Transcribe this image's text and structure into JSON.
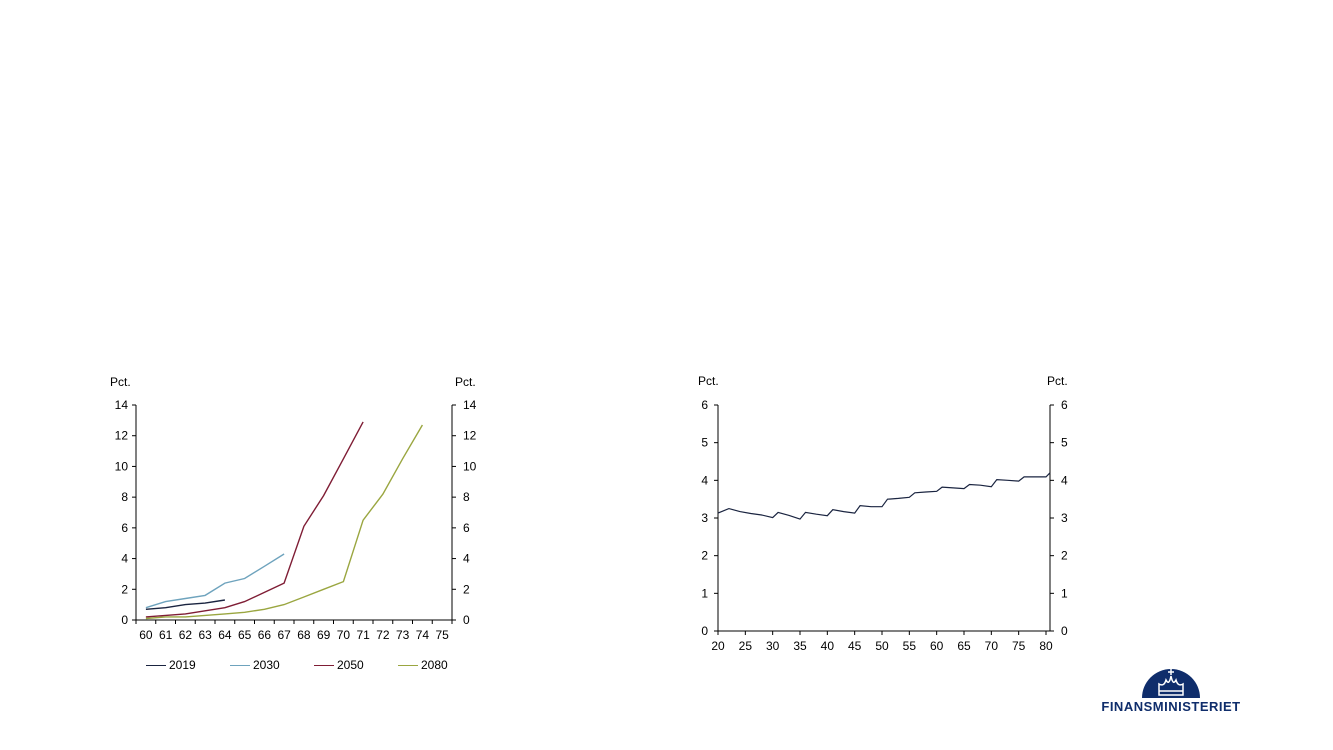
{
  "left_chart": {
    "unit_left": "Pct.",
    "unit_right": "Pct."
  },
  "right_chart": {
    "unit_left": "Pct.",
    "unit_right": "Pct."
  },
  "colors": {
    "2019": "#1a2440",
    "2030": "#6ea3bd",
    "2050": "#7f1d35",
    "2080": "#9aa640",
    "right_series": "#1a2440"
  },
  "logo": {
    "text": "FINANSMINISTERIET",
    "icon": "crown-icon"
  },
  "chart_data": [
    {
      "type": "line",
      "title": "",
      "xlabel": "",
      "ylabel": "Pct.",
      "x": [
        60,
        61,
        62,
        63,
        64,
        65,
        66,
        67,
        68,
        69,
        70,
        71,
        72,
        73,
        74,
        75
      ],
      "xlim": [
        60,
        75
      ],
      "ylim": [
        0,
        14
      ],
      "yticks": [
        0,
        2,
        4,
        6,
        8,
        10,
        12,
        14
      ],
      "legend_position": "bottom",
      "series": [
        {
          "name": "2019",
          "x": [
            60,
            61,
            62,
            63,
            64
          ],
          "values": [
            0.7,
            0.8,
            1.0,
            1.1,
            1.3
          ]
        },
        {
          "name": "2030",
          "x": [
            60,
            61,
            62,
            63,
            64,
            65,
            66,
            67
          ],
          "values": [
            0.8,
            1.2,
            1.4,
            1.6,
            2.4,
            2.7,
            3.5,
            4.3
          ]
        },
        {
          "name": "2050",
          "x": [
            60,
            61,
            62,
            63,
            64,
            65,
            66,
            67,
            68,
            69,
            70,
            71
          ],
          "values": [
            0.2,
            0.3,
            0.4,
            0.6,
            0.8,
            1.2,
            1.8,
            2.4,
            6.1,
            8.1,
            10.5,
            12.9
          ]
        },
        {
          "name": "2080",
          "x": [
            60,
            61,
            62,
            63,
            64,
            65,
            66,
            67,
            68,
            69,
            70,
            71,
            72,
            73,
            74
          ],
          "values": [
            0.1,
            0.2,
            0.2,
            0.3,
            0.4,
            0.5,
            0.7,
            1.0,
            1.5,
            2.0,
            2.5,
            6.5,
            8.2,
            10.5,
            12.7
          ]
        }
      ]
    },
    {
      "type": "line",
      "title": "",
      "xlabel": "",
      "ylabel": "Pct.",
      "xlim": [
        20,
        80
      ],
      "ylim": [
        0,
        6
      ],
      "xticks": [
        20,
        25,
        30,
        35,
        40,
        45,
        50,
        55,
        60,
        65,
        70,
        75,
        80
      ],
      "yticks": [
        0,
        1,
        2,
        3,
        4,
        5,
        6
      ],
      "series": [
        {
          "x": [
            20,
            22,
            24,
            26,
            28,
            30,
            31,
            33,
            35,
            36,
            38,
            40,
            41,
            43,
            45,
            46,
            48,
            50,
            51,
            53,
            55,
            56,
            58,
            60,
            61,
            63,
            65,
            66,
            68,
            70,
            71,
            73,
            75,
            76,
            78,
            80,
            81
          ],
          "values": [
            3.13,
            3.25,
            3.17,
            3.12,
            3.08,
            3.01,
            3.15,
            3.07,
            2.97,
            3.15,
            3.1,
            3.06,
            3.22,
            3.17,
            3.13,
            3.33,
            3.3,
            3.3,
            3.5,
            3.52,
            3.55,
            3.67,
            3.69,
            3.71,
            3.82,
            3.8,
            3.78,
            3.89,
            3.87,
            3.83,
            4.02,
            4.0,
            3.98,
            4.09,
            4.09,
            4.09,
            4.2
          ]
        }
      ]
    }
  ]
}
